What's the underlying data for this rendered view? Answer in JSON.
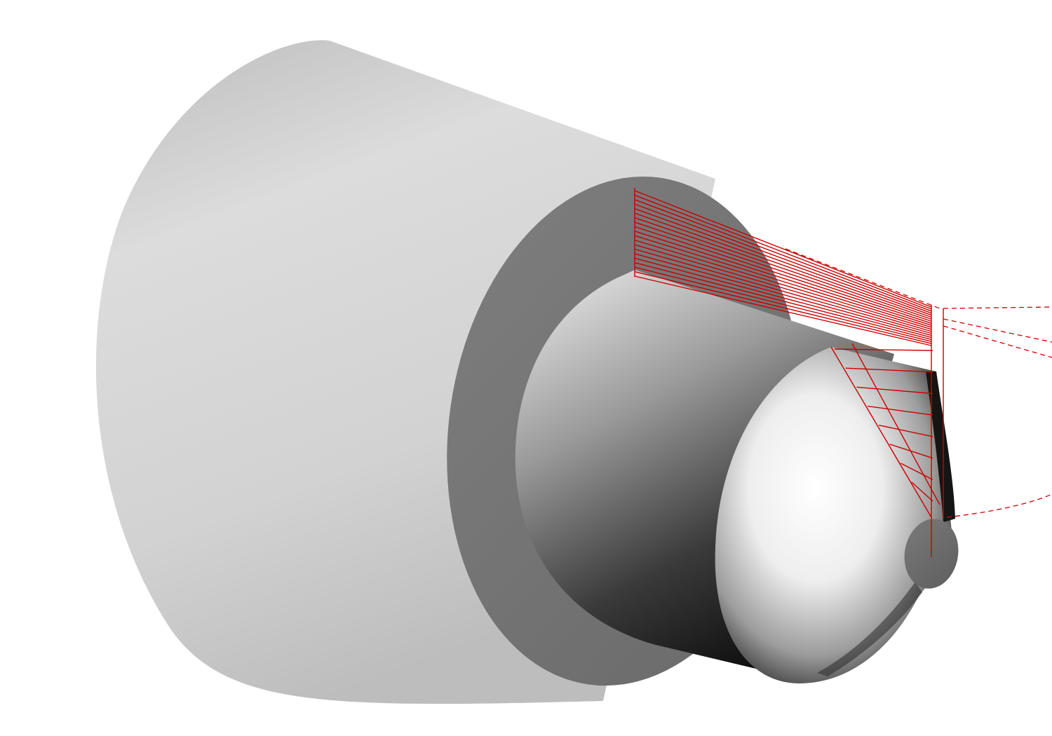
{
  "scene": {
    "background": "#ffffff",
    "part": {
      "segments": [
        "large-cylinder",
        "step-shoulder",
        "small-cylinder",
        "cone",
        "tip"
      ],
      "material_light": "#f4f4f4",
      "material_mid": "#9a9a9a",
      "material_dark": "#1a1a1a"
    },
    "toolpath": {
      "color": "#cc0000",
      "roughing_passes": 20,
      "chamfer_passes": 8,
      "rapid_moves_style": "dashed"
    }
  }
}
